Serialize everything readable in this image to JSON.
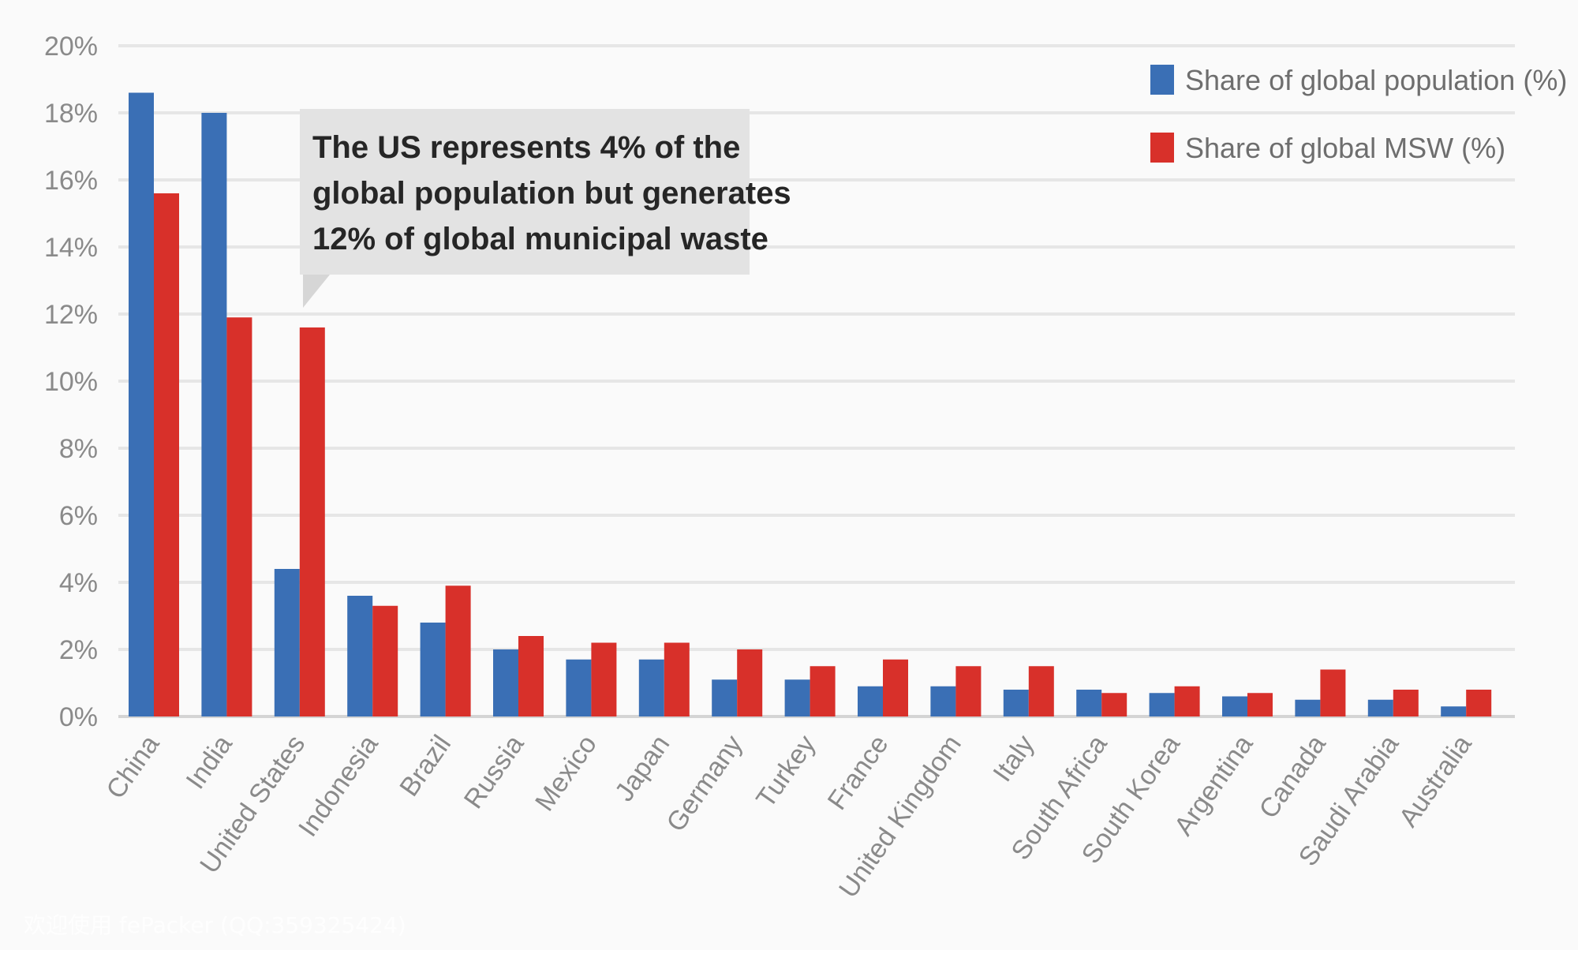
{
  "chart_data": {
    "type": "bar",
    "categories": [
      "China",
      "India",
      "United States",
      "Indonesia",
      "Brazil",
      "Russia",
      "Mexico",
      "Japan",
      "Germany",
      "Turkey",
      "France",
      "United Kingdom",
      "Italy",
      "South Africa",
      "South Korea",
      "Argentina",
      "Canada",
      "Saudi Arabia",
      "Australia"
    ],
    "series": [
      {
        "name": "Share of global population (%)",
        "color": "#3a6fb5",
        "values": [
          18.6,
          18.0,
          4.4,
          3.6,
          2.8,
          2.0,
          1.7,
          1.7,
          1.1,
          1.1,
          0.9,
          0.9,
          0.8,
          0.8,
          0.7,
          0.6,
          0.5,
          0.5,
          0.3
        ]
      },
      {
        "name": "Share of global MSW (%)",
        "color": "#d8302a",
        "values": [
          15.6,
          11.9,
          11.6,
          3.3,
          3.9,
          2.4,
          2.2,
          2.2,
          2.0,
          1.5,
          1.7,
          1.5,
          1.5,
          0.7,
          0.9,
          0.7,
          1.4,
          0.8,
          0.8
        ]
      }
    ],
    "ylim": [
      0,
      20
    ],
    "yticks": [
      "0%",
      "2%",
      "4%",
      "6%",
      "8%",
      "10%",
      "12%",
      "14%",
      "16%",
      "18%",
      "20%"
    ],
    "grid": true,
    "legend_position": "top-right",
    "annotation": {
      "lines": [
        "The US represents 4% of the",
        "global population but generates",
        "12% of global municipal waste"
      ],
      "target_category": "United States"
    },
    "title": "",
    "xlabel": "",
    "ylabel": ""
  },
  "watermark": "欢迎使用 fePacker (QQ:359325424)"
}
